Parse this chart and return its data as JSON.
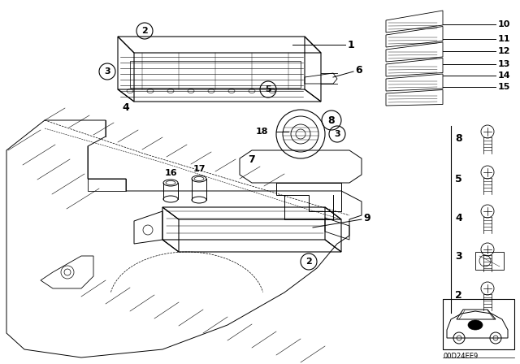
{
  "bg_color": "#ffffff",
  "line_color": "#000000",
  "watermark": "00D24EE9",
  "part_labels_main": [
    "1",
    "2",
    "3",
    "4",
    "5",
    "6",
    "7",
    "8",
    "9",
    "16",
    "17",
    "18"
  ],
  "part_labels_connector": [
    "10",
    "11",
    "12",
    "13",
    "14",
    "15"
  ],
  "part_labels_screws": [
    "8",
    "5",
    "4",
    "3",
    "2"
  ]
}
